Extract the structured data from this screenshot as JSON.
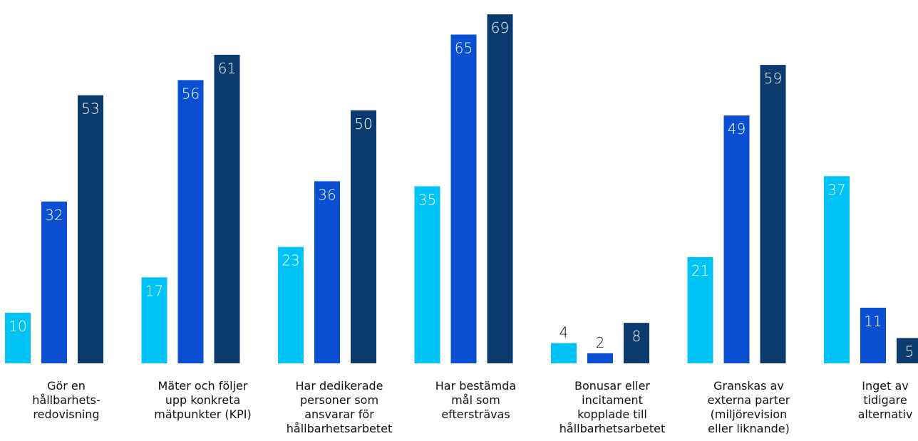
{
  "chart_data": {
    "type": "bar",
    "title": "",
    "xlabel": "",
    "ylabel": "",
    "ylim": [
      0,
      70
    ],
    "grid": false,
    "legend": "none",
    "categories": [
      [
        "Gör en",
        "hållbarhets-",
        "redovisning"
      ],
      [
        "Mäter och följer",
        "upp konkreta",
        "mätpunkter (KPI)"
      ],
      [
        "Har dedikerade",
        "personer som",
        "ansvarar för",
        "hållbarhetsarbetet"
      ],
      [
        "Har bestämda",
        "mål som",
        "eftersträvas"
      ],
      [
        "Bonusar eller",
        "incitament",
        "kopplade till",
        "hållbarhetsarbetet"
      ],
      [
        "Granskas av",
        "externa parter",
        "(miljörevision",
        "eller liknande)"
      ],
      [
        "Inget av",
        "tidigare",
        "alternativ"
      ]
    ],
    "series": [
      {
        "color": "#00c3f5",
        "values": [
          10,
          17,
          23,
          35,
          4,
          21,
          37
        ]
      },
      {
        "color": "#0a4fd1",
        "values": [
          32,
          56,
          36,
          65,
          2,
          49,
          11
        ]
      },
      {
        "color": "#0b3a6e",
        "values": [
          53,
          61,
          50,
          69,
          8,
          59,
          5
        ]
      }
    ]
  }
}
